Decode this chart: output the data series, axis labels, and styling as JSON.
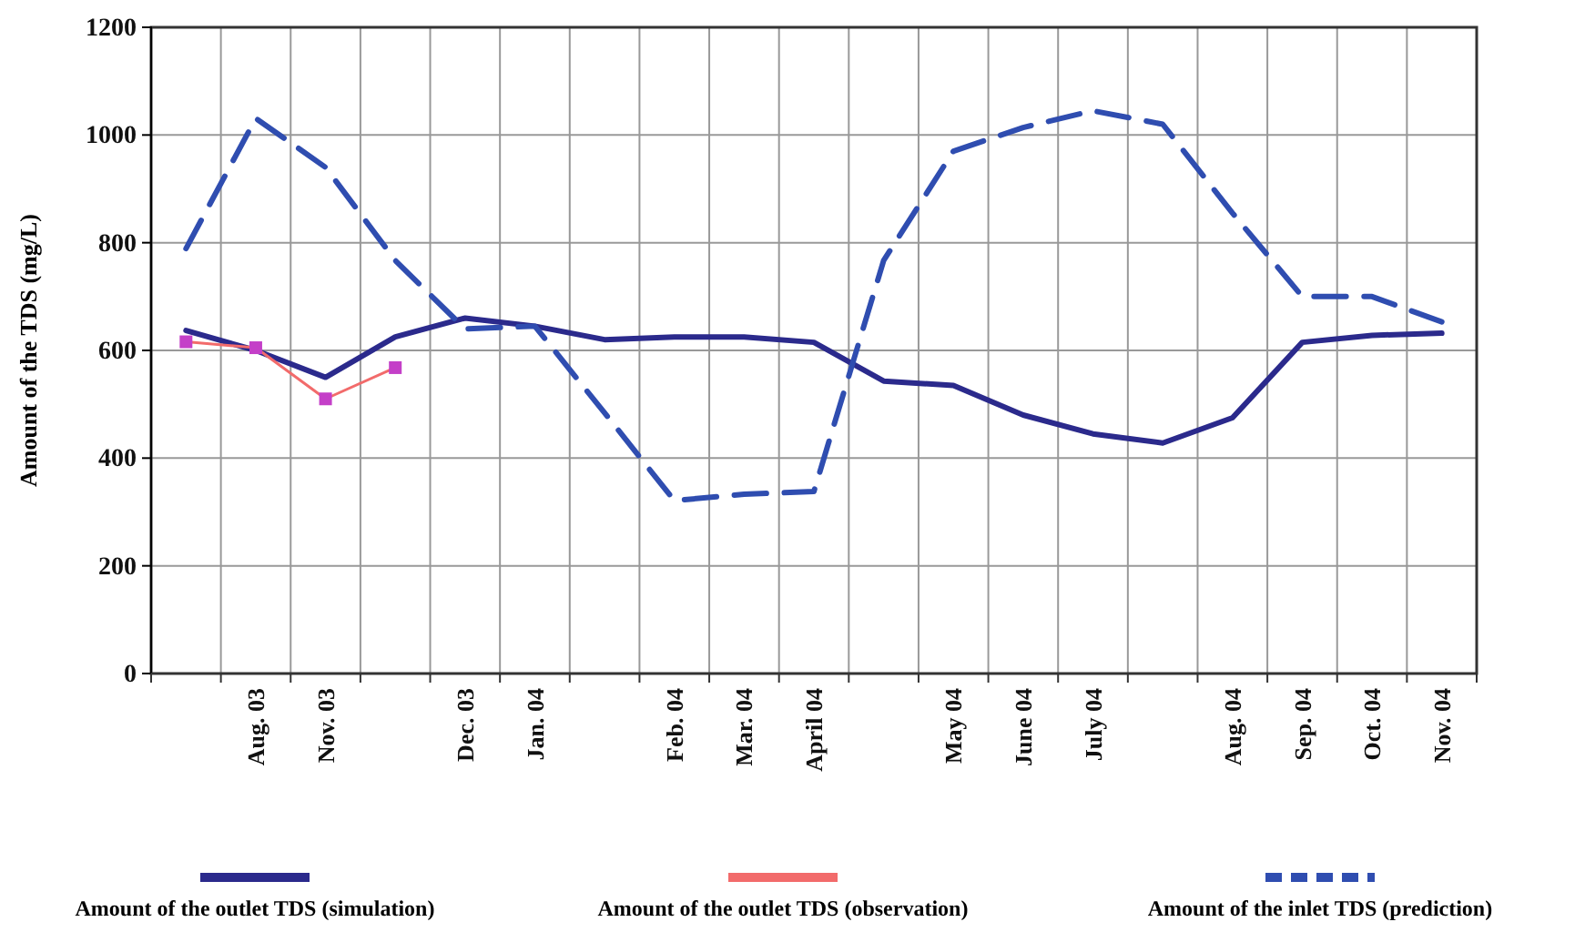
{
  "chart_data": {
    "type": "line",
    "ylabel": "Amount of the TDS (mg/L)",
    "categories": [
      null,
      "Aug. 03",
      "Nov. 03",
      null,
      "Dec. 03",
      "Jan. 04",
      null,
      "Feb. 04",
      "Mar. 04",
      "April 04",
      null,
      "May 04",
      "June 04",
      "July 04",
      null,
      "Aug. 04",
      "Sep. 04",
      "Oct. 04",
      "Nov. 04"
    ],
    "ylim": [
      0,
      1200
    ],
    "yticks": [
      0,
      200,
      400,
      600,
      800,
      1000,
      1200
    ],
    "grid": true,
    "legend": "bottom",
    "series": [
      {
        "name": "Amount of the outlet TDS (simulation)",
        "color": "#2b2a8c",
        "line_style": "solid",
        "values": [
          637,
          600,
          550,
          625,
          660,
          645,
          620,
          625,
          625,
          615,
          543,
          535,
          480,
          445,
          428,
          475,
          615,
          628,
          632
        ]
      },
      {
        "name": "Amount of the outlet TDS (observation)",
        "color": "#f26b6b",
        "marker": "square",
        "line_style": "solid",
        "values": [
          616,
          605,
          510,
          568,
          null,
          null,
          null,
          null,
          null,
          null,
          null,
          null,
          null,
          null,
          null,
          null,
          null,
          null,
          null
        ]
      },
      {
        "name": "Amount of the inlet TDS (prediction)",
        "color": "#2f4db0",
        "line_style": "dashed",
        "values": [
          789,
          1031,
          940,
          767,
          640,
          645,
          484,
          321,
          333,
          338,
          767,
          970,
          1014,
          1045,
          1020,
          855,
          700,
          700,
          653
        ]
      }
    ]
  }
}
